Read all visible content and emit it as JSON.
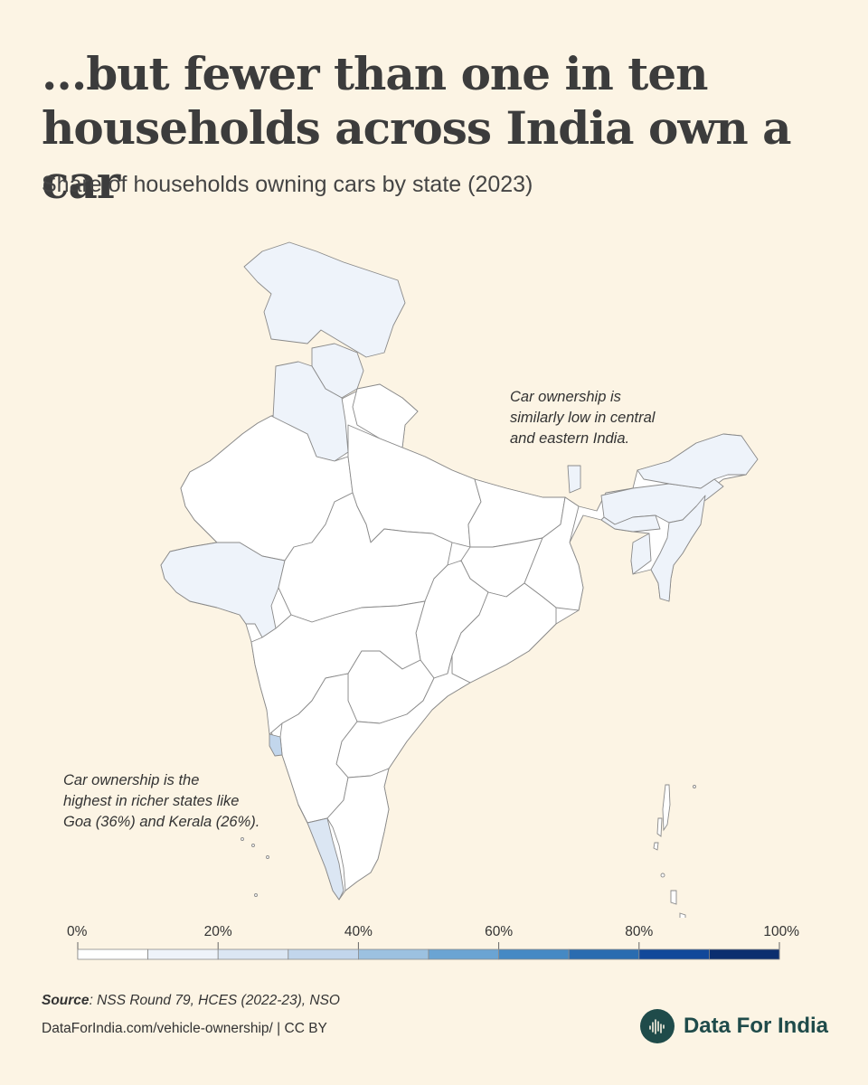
{
  "title": "...but fewer than one in ten households across India own a car",
  "subtitle": "Share of households owning cars by state (2023)",
  "annotations": {
    "east": "Car ownership is\nsimilarly low in central\nand eastern India.",
    "south": "Car ownership is the\nhighest in richer states like\nGoa (36%) and Kerala (26%)."
  },
  "map_data": {
    "type": "choropleth",
    "region": "India",
    "unit": "%",
    "highlighted": [
      {
        "state": "Goa",
        "value": 36
      },
      {
        "state": "Kerala",
        "value": 26
      }
    ]
  },
  "legend": {
    "ticks": [
      "0%",
      "20%",
      "40%",
      "60%",
      "80%",
      "100%"
    ],
    "colors": [
      "#ffffff",
      "#eef3fa",
      "#dbe6f3",
      "#c2d6ec",
      "#9cc1e0",
      "#6ba4d3",
      "#4589c4",
      "#2a6cb0",
      "#11489a",
      "#0b2e6f"
    ]
  },
  "colors": {
    "background": "#fcf4e4",
    "border": "#8a8a8a",
    "very_low": "#ffffff",
    "low": "#eef3fa",
    "kerala": "#dbe6f3",
    "goa": "#c2d6ec",
    "brand": "#1f4b4a"
  },
  "footer": {
    "source_label": "Source",
    "source_text": ": NSS Round 79, HCES (2022-23), NSO",
    "url": "DataForIndia.com/vehicle-ownership/  |  CC BY",
    "brand_name": "Data For India",
    "brand_icon": "data-for-india-logo-icon"
  }
}
